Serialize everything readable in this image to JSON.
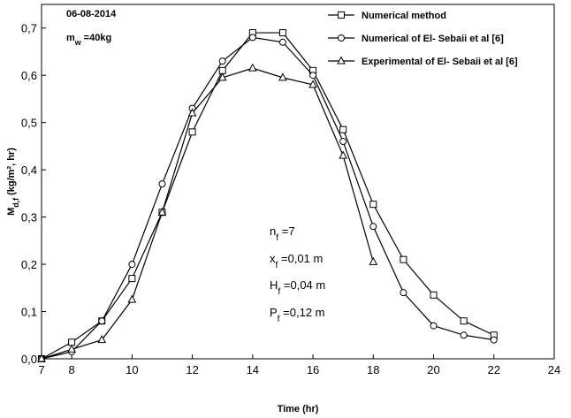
{
  "chart_data": {
    "type": "line",
    "x_label": "Time (hr)",
    "y_label": [
      {
        "text": "M"
      },
      {
        "text": "d,f",
        "sub": true
      },
      {
        "text": " (kg/m², hr)"
      }
    ],
    "xlim": [
      7,
      24
    ],
    "xticks": [
      7,
      8,
      10,
      12,
      14,
      16,
      18,
      20,
      22,
      24
    ],
    "ylim": [
      0,
      0.75
    ],
    "yticks": [
      {
        "value": 0,
        "label": "0,0"
      },
      {
        "value": 0.1,
        "label": "0,1"
      },
      {
        "value": 0.2,
        "label": "0,2"
      },
      {
        "value": 0.3,
        "label": "0,3"
      },
      {
        "value": 0.4,
        "label": "0,4"
      },
      {
        "value": 0.5,
        "label": "0,5"
      },
      {
        "value": 0.6,
        "label": "0,6"
      },
      {
        "value": 0.7,
        "label": "0,7"
      }
    ],
    "legend": "top-right",
    "series": [
      {
        "name": "Numerical method",
        "marker": "square",
        "color": "#000000",
        "x": [
          7,
          8,
          9,
          10,
          11,
          12,
          13,
          14,
          15,
          16,
          17,
          18,
          19,
          20,
          21,
          22
        ],
        "values": [
          0.0,
          0.035,
          0.08,
          0.17,
          0.31,
          0.48,
          0.61,
          0.69,
          0.69,
          0.61,
          0.485,
          0.327,
          0.21,
          0.135,
          0.08,
          0.05
        ]
      },
      {
        "name": "Numerical of  El- Sebaii et al [6]",
        "marker": "circle",
        "color": "#000000",
        "x": [
          7,
          8,
          9,
          10,
          11,
          12,
          13,
          14,
          15,
          16,
          17,
          18,
          19,
          20,
          21,
          22
        ],
        "values": [
          0.0,
          0.015,
          0.08,
          0.2,
          0.37,
          0.53,
          0.63,
          0.68,
          0.67,
          0.6,
          0.46,
          0.28,
          0.14,
          0.07,
          0.05,
          0.04
        ]
      },
      {
        "name": "Experimental of El- Sebaii et al [6]",
        "marker": "triangle",
        "color": "#000000",
        "x": [
          7,
          8,
          9,
          10,
          11,
          12,
          13,
          14,
          15,
          16,
          17,
          18
        ],
        "values": [
          0.0,
          0.02,
          0.04,
          0.125,
          0.31,
          0.52,
          0.595,
          0.615,
          0.595,
          0.58,
          0.43,
          0.205
        ]
      }
    ],
    "annotations": [
      [
        {
          "text": "06-08-2014"
        }
      ],
      [
        {
          "text": "m"
        },
        {
          "text": "w",
          "sub": true
        },
        {
          "text": " =40kg"
        }
      ],
      [
        {
          "text": "n"
        },
        {
          "text": "f",
          "sub": true
        },
        {
          "text": " =7"
        }
      ],
      [
        {
          "text": "x"
        },
        {
          "text": "f",
          "sub": true
        },
        {
          "text": " =0,01 m"
        }
      ],
      [
        {
          "text": "H"
        },
        {
          "text": "f",
          "sub": true
        },
        {
          "text": " =0,04 m"
        }
      ],
      [
        {
          "text": "P"
        },
        {
          "text": "f",
          "sub": true
        },
        {
          "text": " =0,12 m"
        }
      ]
    ]
  }
}
